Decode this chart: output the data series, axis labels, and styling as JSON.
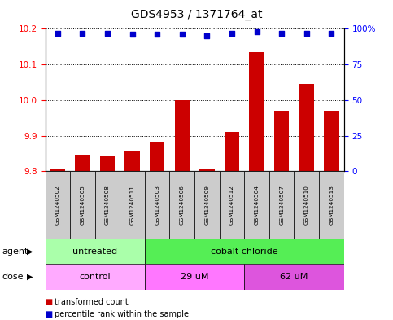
{
  "title": "GDS4953 / 1371764_at",
  "samples": [
    "GSM1240502",
    "GSM1240505",
    "GSM1240508",
    "GSM1240511",
    "GSM1240503",
    "GSM1240506",
    "GSM1240509",
    "GSM1240512",
    "GSM1240504",
    "GSM1240507",
    "GSM1240510",
    "GSM1240513"
  ],
  "bar_values": [
    9.806,
    9.847,
    9.845,
    9.856,
    9.881,
    10.0,
    9.808,
    9.91,
    10.135,
    9.97,
    10.045,
    9.97
  ],
  "percentile_values": [
    97,
    97,
    97,
    96,
    96,
    96,
    95,
    97,
    98,
    97,
    97,
    97
  ],
  "ymin": 9.8,
  "ymax": 10.2,
  "yticks": [
    9.8,
    9.9,
    10.0,
    10.1,
    10.2
  ],
  "y2min": 0,
  "y2max": 100,
  "y2ticks": [
    0,
    25,
    50,
    75,
    100
  ],
  "bar_color": "#cc0000",
  "dot_color": "#0000cc",
  "agent_groups": [
    {
      "label": "untreated",
      "start": 0,
      "end": 4,
      "color": "#aaffaa"
    },
    {
      "label": "cobalt chloride",
      "start": 4,
      "end": 12,
      "color": "#55ee55"
    }
  ],
  "dose_groups": [
    {
      "label": "control",
      "start": 0,
      "end": 4,
      "color": "#ffaaff"
    },
    {
      "label": "29 uM",
      "start": 4,
      "end": 8,
      "color": "#ff77ff"
    },
    {
      "label": "62 uM",
      "start": 8,
      "end": 12,
      "color": "#dd55dd"
    }
  ],
  "legend_bar_label": "transformed count",
  "legend_dot_label": "percentile rank within the sample",
  "xlabel_agent": "agent",
  "xlabel_dose": "dose"
}
